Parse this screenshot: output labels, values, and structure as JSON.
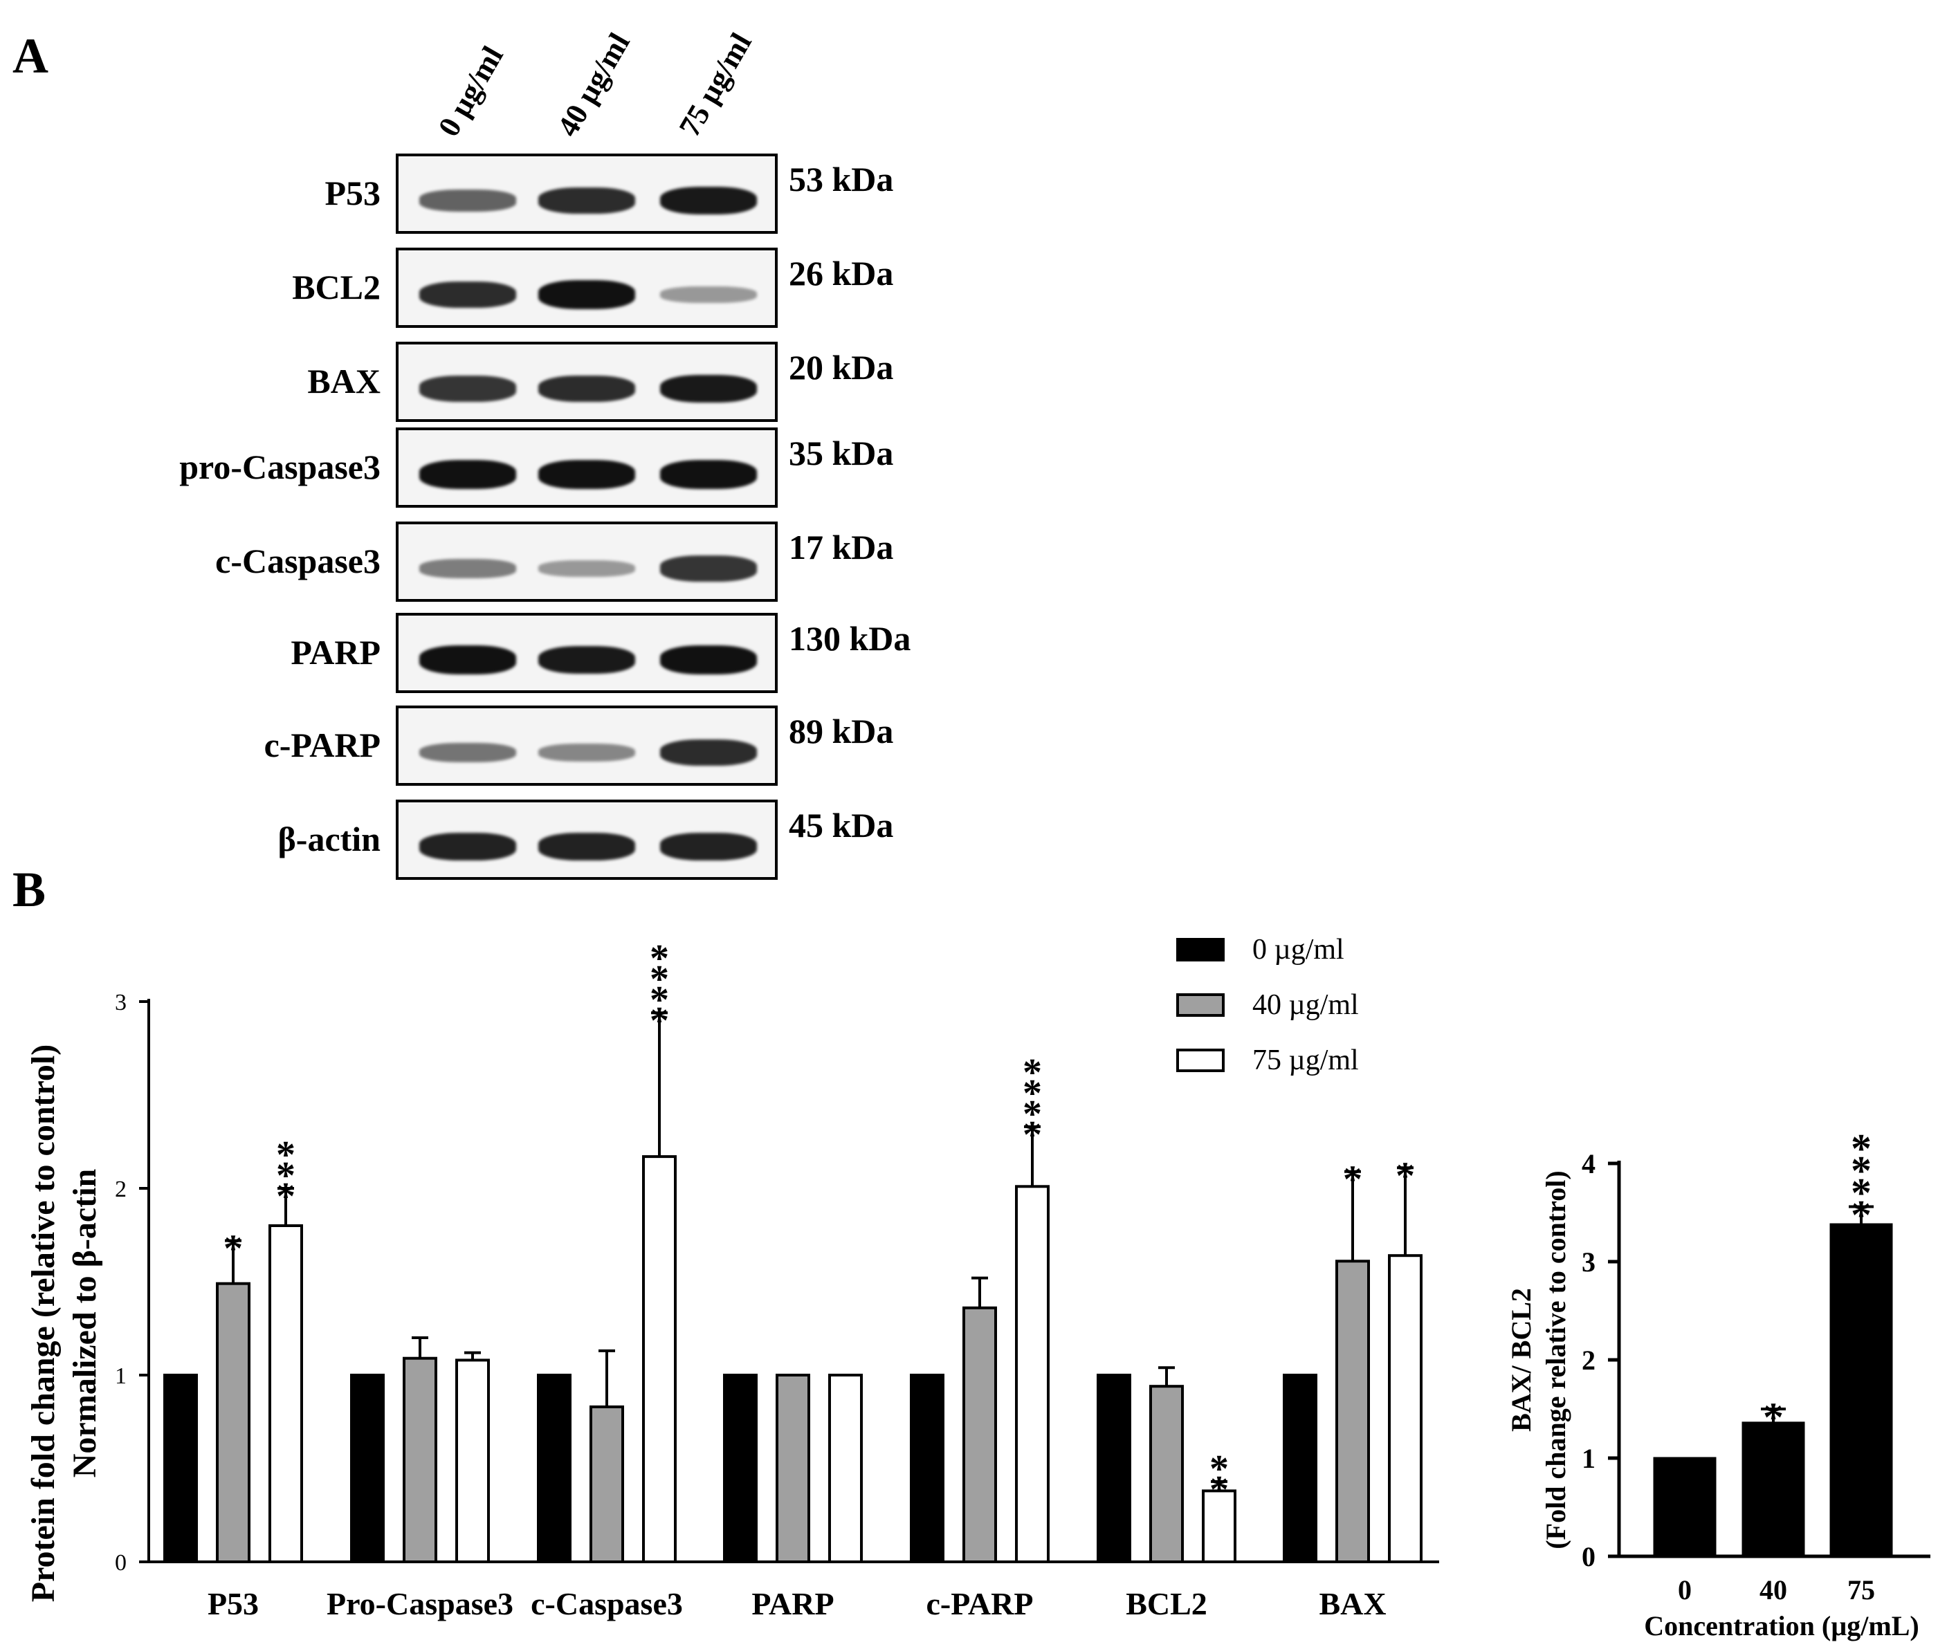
{
  "panel_a": {
    "letter": "A",
    "lanes": [
      "0 µg/ml",
      "40 µg/ml",
      "75 µg/ml"
    ],
    "blots": [
      {
        "protein": "P53",
        "kda": "53 kDa",
        "intensity": [
          0.55,
          0.85,
          0.95
        ]
      },
      {
        "protein": "BCL2",
        "kda": "26 kDa",
        "intensity": [
          0.85,
          1.0,
          0.25
        ]
      },
      {
        "protein": "BAX",
        "kda": "20 kDa",
        "intensity": [
          0.8,
          0.85,
          0.95
        ]
      },
      {
        "protein": "pro-Caspase3",
        "kda": "35 kDa",
        "intensity": [
          1.0,
          1.0,
          1.0
        ]
      },
      {
        "protein": "c-Caspase3",
        "kda": "17 kDa",
        "intensity": [
          0.4,
          0.25,
          0.8
        ]
      },
      {
        "protein": "PARP",
        "kda": "130 kDa",
        "intensity": [
          1.0,
          0.95,
          1.0
        ]
      },
      {
        "protein": "c-PARP",
        "kda": "89 kDa",
        "intensity": [
          0.45,
          0.35,
          0.85
        ]
      },
      {
        "protein": "β-actin",
        "kda": "45 kDa",
        "intensity": [
          0.9,
          0.9,
          0.9
        ]
      }
    ]
  },
  "chart_data": [
    {
      "type": "bar",
      "panel": "B",
      "categories": [
        "P53",
        "Pro-Caspase3",
        "c-Caspase3",
        "PARP",
        "c-PARP",
        "BCL2",
        "BAX"
      ],
      "ylabel_line1": "Protein fold change (relative to control)",
      "ylabel_line2": "Normalized to β-actin",
      "xlabel": "",
      "ylim": [
        0,
        3
      ],
      "yticks": [
        0,
        1,
        2,
        3
      ],
      "legend_position": "top-right",
      "series": [
        {
          "name": "0 µg/ml",
          "color": "#000000",
          "values": [
            1,
            1,
            1,
            1,
            1,
            1,
            1
          ],
          "errors": [
            0,
            0,
            0,
            0,
            0,
            0,
            0
          ],
          "sig": [
            "",
            "",
            "",
            "",
            "",
            "",
            ""
          ]
        },
        {
          "name": "40 µg/ml",
          "color": "#a0a0a0",
          "values": [
            1.49,
            1.09,
            0.83,
            1.0,
            1.36,
            0.94,
            1.61
          ],
          "errors": [
            0.23,
            0.11,
            0.3,
            0,
            0.16,
            0.1,
            0.48
          ],
          "sig": [
            "*",
            "",
            "",
            "",
            "",
            "",
            "*"
          ]
        },
        {
          "name": "75 µg/ml",
          "color": "#ffffff",
          "values": [
            1.8,
            1.08,
            2.17,
            1.0,
            2.01,
            0.38,
            1.64
          ],
          "errors": [
            0.2,
            0.04,
            0.77,
            0,
            0.32,
            0.05,
            0.47
          ],
          "sig": [
            "***",
            "",
            "****",
            "",
            "****",
            "**",
            "*"
          ]
        }
      ]
    },
    {
      "type": "bar",
      "categories": [
        "0",
        "40",
        "75"
      ],
      "values": [
        1.0,
        1.36,
        3.38
      ],
      "errors": [
        0,
        0.14,
        0.18
      ],
      "sig": [
        "",
        "*",
        "****"
      ],
      "color": "#000000",
      "ylabel_line1": "BAX/ BCL2",
      "ylabel_line2": "(Fold change relative to control)",
      "xlabel": "Concentration (µg/mL)",
      "ylim": [
        0,
        4
      ],
      "yticks": [
        0,
        1,
        2,
        3,
        4
      ]
    }
  ]
}
